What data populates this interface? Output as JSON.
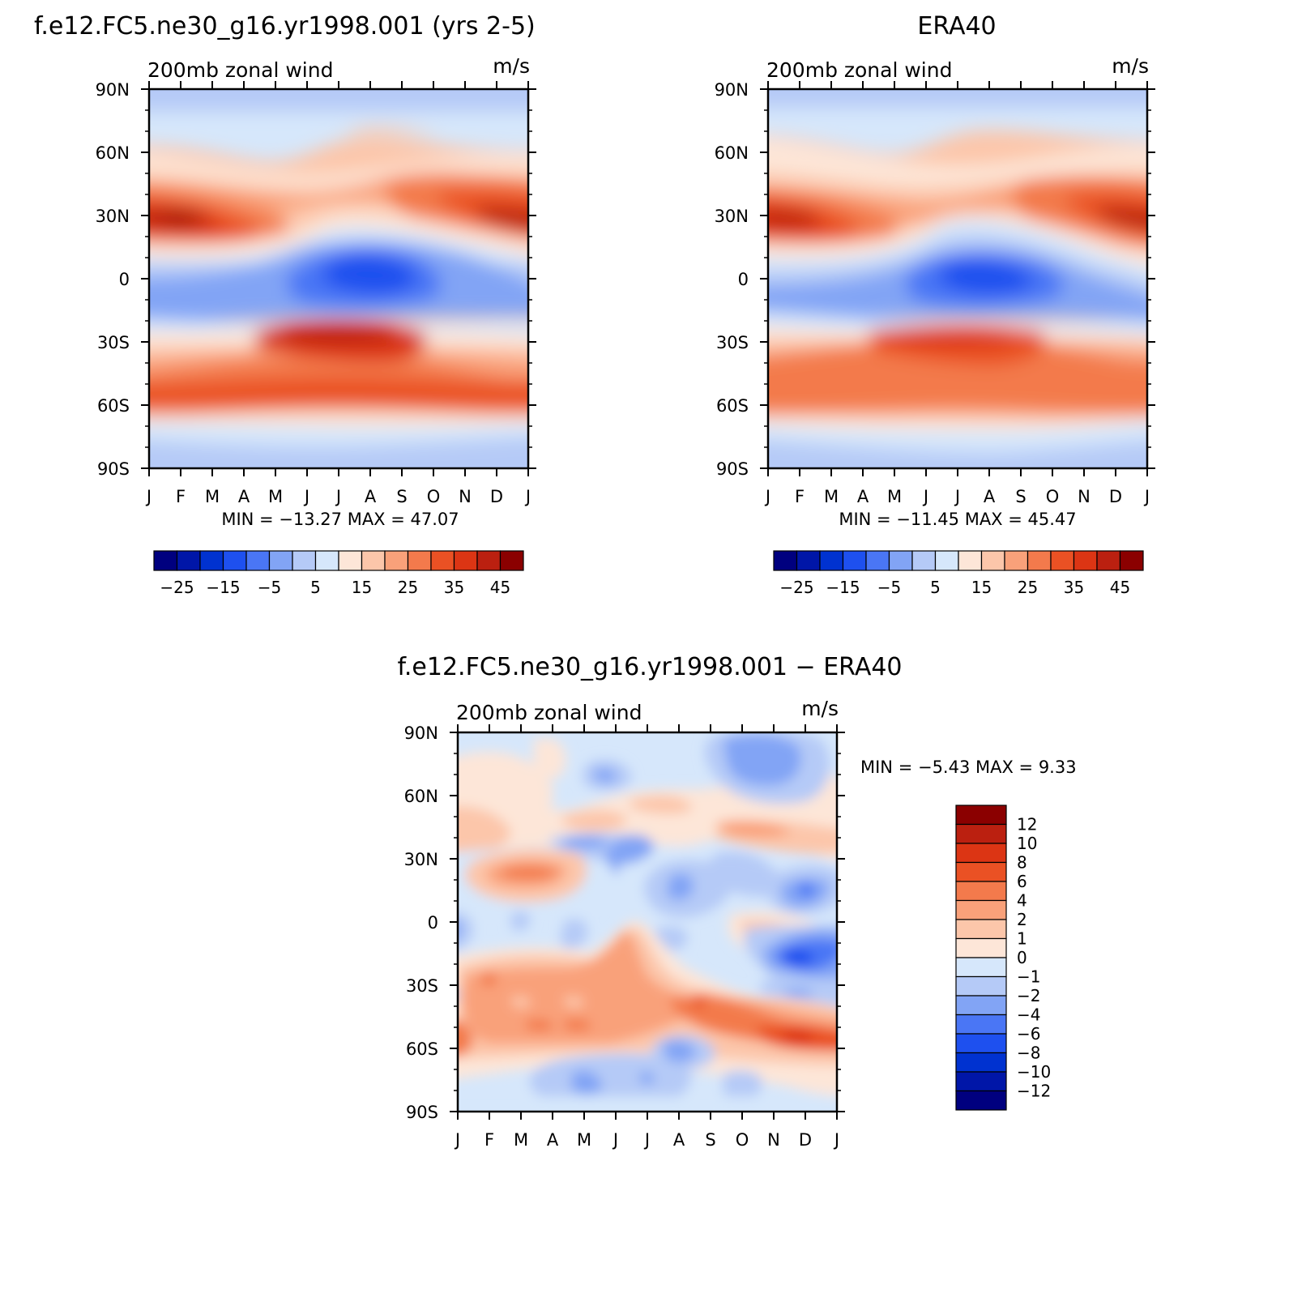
{
  "chart_data": [
    {
      "type": "heatmap",
      "title": "f.e12.FC5.ne30_g16.yr1998.001 (yrs 2-5)",
      "subtitle": "200mb zonal wind",
      "units": "m/s",
      "x_ticklabels": [
        "J",
        "F",
        "M",
        "A",
        "M",
        "J",
        "J",
        "A",
        "S",
        "O",
        "N",
        "D",
        "J"
      ],
      "y_ticklabels": [
        "90N",
        "60N",
        "30N",
        "0",
        "30S",
        "60S",
        "90S"
      ],
      "ylim": [
        -90,
        90
      ],
      "stats": "MIN = −13.27  MAX =   47.07",
      "min": -13.27,
      "max": 47.07,
      "colorbar_labels": [
        "−25",
        "−15",
        "−5",
        "5",
        "15",
        "25",
        "35",
        "45"
      ],
      "levels": [
        -30,
        -25,
        -20,
        -15,
        -10,
        -5,
        0,
        5,
        10,
        15,
        20,
        25,
        30,
        35,
        40,
        45,
        50
      ],
      "colors": [
        "#00007f",
        "#0016a8",
        "#0032d0",
        "#1e50ef",
        "#4a76f5",
        "#82a4f5",
        "#b5caf7",
        "#d6e7fb",
        "#fde6d8",
        "#fcc6aa",
        "#f9a17a",
        "#f37a4c",
        "#ea5124",
        "#dc3514",
        "#bb2010",
        "#8b0000"
      ]
    },
    {
      "type": "heatmap",
      "title": "ERA40",
      "subtitle": "200mb zonal wind",
      "units": "m/s",
      "x_ticklabels": [
        "J",
        "F",
        "M",
        "A",
        "M",
        "J",
        "J",
        "A",
        "S",
        "O",
        "N",
        "D",
        "J"
      ],
      "y_ticklabels": [
        "90N",
        "60N",
        "30N",
        "0",
        "30S",
        "60S",
        "90S"
      ],
      "ylim": [
        -90,
        90
      ],
      "stats": "MIN = −11.45  MAX =   45.47",
      "min": -11.45,
      "max": 45.47,
      "colorbar_labels": [
        "−25",
        "−15",
        "−5",
        "5",
        "15",
        "25",
        "35",
        "45"
      ],
      "levels": [
        -30,
        -25,
        -20,
        -15,
        -10,
        -5,
        0,
        5,
        10,
        15,
        20,
        25,
        30,
        35,
        40,
        45,
        50
      ],
      "colors": [
        "#00007f",
        "#0016a8",
        "#0032d0",
        "#1e50ef",
        "#4a76f5",
        "#82a4f5",
        "#b5caf7",
        "#d6e7fb",
        "#fde6d8",
        "#fcc6aa",
        "#f9a17a",
        "#f37a4c",
        "#ea5124",
        "#dc3514",
        "#bb2010",
        "#8b0000"
      ]
    },
    {
      "type": "heatmap",
      "title": "f.e12.FC5.ne30_g16.yr1998.001 − ERA40",
      "subtitle": "200mb zonal wind",
      "units": "m/s",
      "x_ticklabels": [
        "J",
        "F",
        "M",
        "A",
        "M",
        "J",
        "J",
        "A",
        "S",
        "O",
        "N",
        "D",
        "J"
      ],
      "y_ticklabels": [
        "90N",
        "60N",
        "30N",
        "0",
        "30S",
        "60S",
        "90S"
      ],
      "ylim": [
        -90,
        90
      ],
      "stats": "MIN =   −5.43  MAX =    9.33",
      "min": -5.43,
      "max": 9.33,
      "colorbar_labels": [
        "12",
        "10",
        "8",
        "6",
        "4",
        "2",
        "1",
        "0",
        "−1",
        "−2",
        "−4",
        "−6",
        "−8",
        "−10",
        "−12"
      ],
      "levels": [
        -14,
        -12,
        -10,
        -8,
        -6,
        -4,
        -2,
        -1,
        0,
        1,
        2,
        4,
        6,
        8,
        10,
        12,
        14
      ],
      "colors": [
        "#00007f",
        "#0016a8",
        "#0032d0",
        "#1e50ef",
        "#4a76f5",
        "#82a4f5",
        "#b5caf7",
        "#d6e7fb",
        "#fde6d8",
        "#fcc6aa",
        "#f9a17a",
        "#f37a4c",
        "#ea5124",
        "#dc3514",
        "#bb2010",
        "#8b0000"
      ]
    }
  ]
}
